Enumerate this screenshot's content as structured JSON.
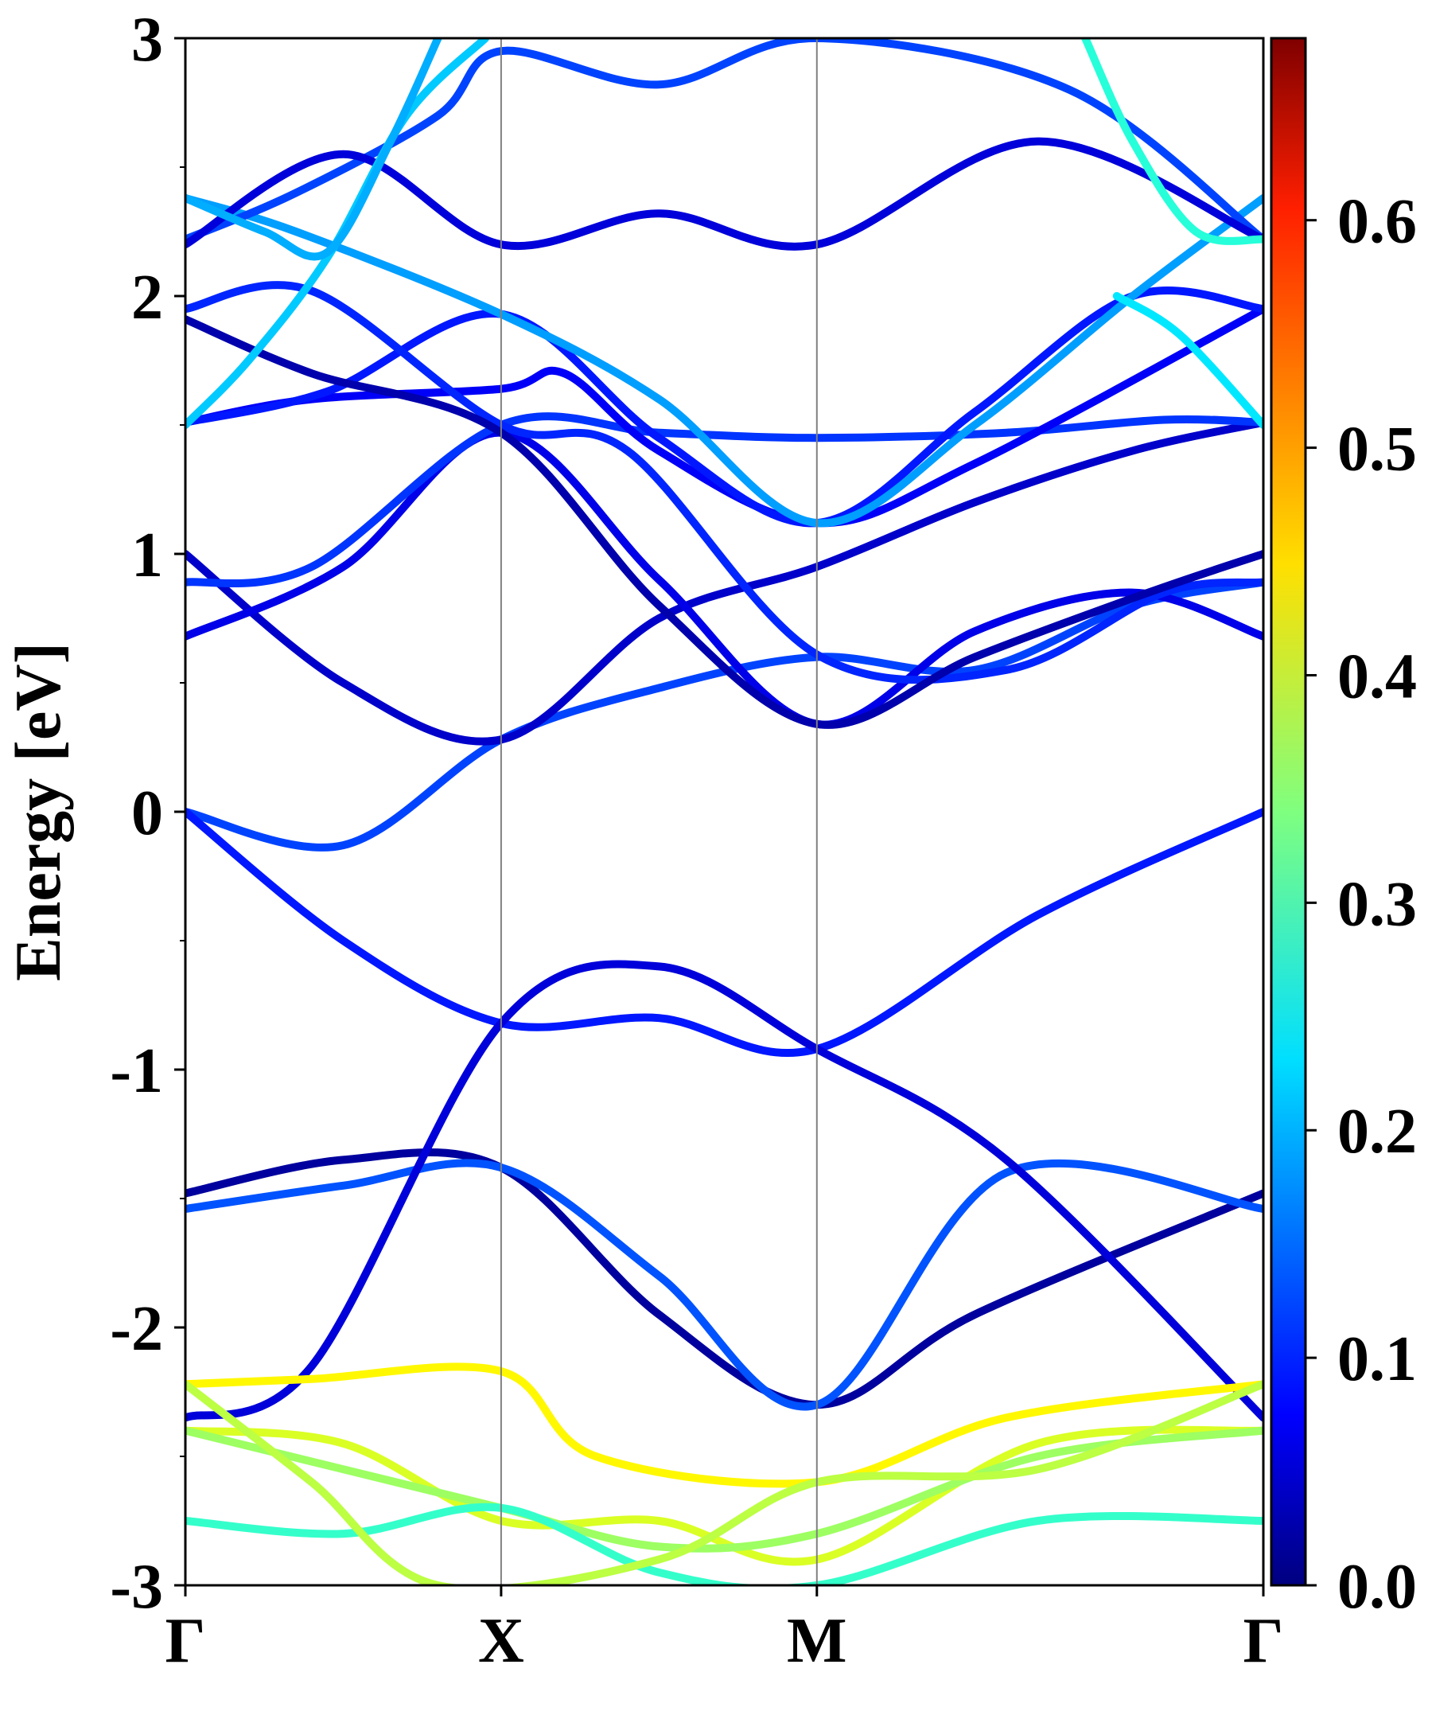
{
  "chart_data": {
    "type": "line",
    "title": "",
    "ylabel": "Energy [eV]",
    "xlabel": "",
    "ylim": [
      -3,
      3
    ],
    "y_ticks": [
      "3",
      "2",
      "1",
      "0",
      "-1",
      "-2",
      "-3"
    ],
    "y_tick_values": [
      3,
      2,
      1,
      0,
      -1,
      -2,
      -3
    ],
    "k_points": [
      "Γ",
      "X",
      "M",
      "Γ"
    ],
    "k_point_positions": [
      0,
      1,
      2,
      3.414
    ],
    "grid": false,
    "colorbar": {
      "colormap": "jet",
      "range": [
        0.0,
        0.68
      ],
      "tick_labels": [
        "0.0",
        "0.1",
        "0.2",
        "0.3",
        "0.4",
        "0.5",
        "0.6"
      ],
      "tick_values": [
        0.0,
        0.1,
        0.2,
        0.3,
        0.4,
        0.5,
        0.6
      ]
    },
    "series": [
      {
        "w": 0.13,
        "k": [
          0,
          0.5,
          1,
          1.5,
          2,
          2.5,
          3,
          3.414
        ],
        "e": [
          0.0,
          -0.13,
          0.28,
          0.48,
          0.6,
          0.55,
          0.8,
          0.89
        ]
      },
      {
        "w": 0.1,
        "k": [
          0,
          0.5,
          1,
          1.5,
          2,
          2.7,
          3.414
        ],
        "e": [
          0.0,
          -0.5,
          -0.82,
          -0.8,
          -0.92,
          -0.4,
          0.0
        ]
      },
      {
        "w": 0.05,
        "k": [
          0,
          0.5,
          1,
          1.5,
          2,
          2.5,
          3,
          3.414
        ],
        "e": [
          1.0,
          0.5,
          0.28,
          0.75,
          0.95,
          1.2,
          1.4,
          1.51
        ]
      },
      {
        "w": 0.07,
        "k": [
          0,
          0.5,
          1,
          1.5,
          2,
          2.5,
          3,
          3.414
        ],
        "e": [
          0.68,
          0.95,
          1.47,
          0.9,
          0.34,
          0.7,
          0.85,
          0.68
        ]
      },
      {
        "w": 0.12,
        "k": [
          0,
          0.4,
          1,
          1.5,
          2,
          2.6,
          3.1,
          3.414
        ],
        "e": [
          0.89,
          0.95,
          1.5,
          1.47,
          1.45,
          1.47,
          1.52,
          1.51
        ]
      },
      {
        "w": 0.08,
        "k": [
          0,
          0.4,
          1,
          1.2,
          1.5,
          2,
          2.5,
          3.414
        ],
        "e": [
          1.51,
          1.6,
          1.64,
          1.7,
          1.4,
          1.12,
          1.35,
          1.95
        ]
      },
      {
        "w": 0.1,
        "k": [
          0,
          0.45,
          1,
          1.5,
          2,
          2.5,
          3,
          3.414
        ],
        "e": [
          1.51,
          1.63,
          1.93,
          1.45,
          1.12,
          1.55,
          2.0,
          1.95
        ]
      },
      {
        "w": 0.11,
        "k": [
          0,
          0.4,
          1,
          1.4,
          2,
          2.6,
          3.1,
          3.414
        ],
        "e": [
          1.95,
          2.02,
          1.5,
          1.4,
          0.61,
          0.55,
          0.85,
          0.89
        ]
      },
      {
        "w": 0.03,
        "k": [
          0,
          0.4,
          1,
          1.5,
          2,
          2.5,
          3.05,
          3.414
        ],
        "e": [
          1.91,
          1.7,
          1.47,
          0.8,
          0.34,
          0.6,
          0.85,
          1.0
        ]
      },
      {
        "w": 0.02,
        "k": [
          0,
          0.5,
          1,
          1.5,
          2,
          2.5,
          3.414
        ],
        "e": [
          -1.48,
          -1.35,
          -1.38,
          -1.95,
          -2.3,
          -1.95,
          -1.48
        ]
      },
      {
        "w": 0.14,
        "k": [
          0,
          0.5,
          1,
          1.5,
          2,
          2.6,
          3.414
        ],
        "e": [
          -1.54,
          -1.45,
          -1.38,
          -1.8,
          -2.3,
          -1.4,
          -1.54
        ]
      },
      {
        "w": 0.06,
        "k": [
          0,
          0.4,
          1,
          1.5,
          2,
          2.6,
          3.414
        ],
        "e": [
          -2.35,
          -2.15,
          -0.82,
          -0.6,
          -0.92,
          -1.35,
          -2.35
        ]
      },
      {
        "w": 0.43,
        "k": [
          0,
          0.4,
          1,
          1.3,
          2,
          2.6,
          3.414
        ],
        "e": [
          -2.22,
          -2.2,
          -2.17,
          -2.5,
          -2.6,
          -2.35,
          -2.22
        ]
      },
      {
        "w": 0.4,
        "k": [
          0,
          0.5,
          1,
          1.5,
          2,
          2.7,
          3.414
        ],
        "e": [
          -2.4,
          -2.45,
          -2.75,
          -2.75,
          -2.9,
          -2.45,
          -2.4
        ]
      },
      {
        "w": 0.36,
        "k": [
          0,
          0.5,
          1,
          1.5,
          2,
          2.7,
          3.414
        ],
        "e": [
          -2.4,
          -2.55,
          -2.7,
          -2.85,
          -2.8,
          -2.5,
          -2.4
        ]
      },
      {
        "w": 0.29,
        "k": [
          0,
          0.5,
          1,
          1.5,
          2,
          2.7,
          3.414
        ],
        "e": [
          -2.75,
          -2.8,
          -2.7,
          -2.95,
          -3.0,
          -2.75,
          -2.75
        ]
      },
      {
        "w": 0.38,
        "k": [
          0,
          0.4,
          0.8,
          1.5,
          2,
          2.7,
          3.414
        ],
        "e": [
          -2.22,
          -2.6,
          -3.0,
          -2.9,
          -2.6,
          -2.55,
          -2.22
        ]
      },
      {
        "w": 0.19,
        "k": [
          0,
          0.35,
          1,
          1.5,
          2,
          2.5,
          3.0,
          3.414
        ],
        "e": [
          2.38,
          2.25,
          1.93,
          1.6,
          1.12,
          1.5,
          2.0,
          2.38
        ]
      },
      {
        "w": 0.13,
        "k": [
          0,
          0.35,
          0.8,
          1,
          1.5,
          2,
          2.8,
          3.414
        ],
        "e": [
          2.22,
          2.4,
          2.7,
          2.95,
          2.82,
          3.0,
          2.8,
          2.22
        ]
      },
      {
        "w": 0.06,
        "k": [
          0,
          0.5,
          1,
          1.5,
          2,
          2.7,
          3.414
        ],
        "e": [
          2.2,
          2.55,
          2.2,
          2.32,
          2.2,
          2.6,
          2.22
        ]
      },
      {
        "w": 0.22,
        "k": [
          0,
          0.2,
          0.45,
          0.7,
          0.95
        ],
        "e": [
          1.5,
          1.75,
          2.15,
          2.7,
          3.0
        ]
      },
      {
        "w": 0.2,
        "k": [
          0,
          0.25,
          0.45,
          0.65,
          0.8
        ],
        "e": [
          2.38,
          2.25,
          2.17,
          2.6,
          3.0
        ]
      },
      {
        "w": 0.28,
        "k": [
          2.85,
          3.0,
          3.2,
          3.414
        ],
        "e": [
          3.0,
          2.6,
          2.25,
          2.22
        ]
      },
      {
        "w": 0.24,
        "k": [
          2.95,
          3.15,
          3.414
        ],
        "e": [
          2.0,
          1.85,
          1.5
        ]
      }
    ]
  }
}
